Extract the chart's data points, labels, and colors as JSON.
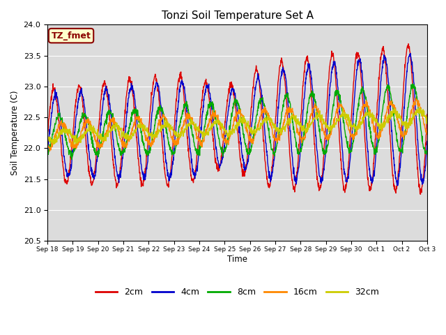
{
  "title": "Tonzi Soil Temperature Set A",
  "xlabel": "Time",
  "ylabel": "Soil Temperature (C)",
  "ylim": [
    20.5,
    24.0
  ],
  "background_color": "#dcdcdc",
  "legend_label": "TZ_fmet",
  "legend_box_color": "#ffffcc",
  "legend_box_edge": "#8b0000",
  "series_colors": [
    "#dd0000",
    "#0000cc",
    "#00aa00",
    "#ff8800",
    "#cccc00"
  ],
  "series_labels": [
    "2cm",
    "4cm",
    "8cm",
    "16cm",
    "32cm"
  ],
  "xtick_labels": [
    "Sep 18",
    "Sep 19",
    "Sep 20",
    "Sep 21",
    "Sep 22",
    "Sep 23",
    "Sep 24",
    "Sep 25",
    "Sep 26",
    "Sep 27",
    "Sep 28",
    "Sep 29",
    "Sep 30",
    "Oct 1",
    "Oct 2",
    "Oct 3"
  ],
  "n_points": 1500,
  "base": 22.2,
  "amp_2": 0.85,
  "amp_4": 0.72,
  "amp_8": 0.42,
  "amp_16": 0.22,
  "amp_32": 0.1,
  "lag_2": 0.0,
  "lag_4": 0.07,
  "lag_8": 0.2,
  "lag_16": 0.32,
  "lag_32": 0.44,
  "noise_scale": 0.03,
  "period": 1.0,
  "days": 15
}
